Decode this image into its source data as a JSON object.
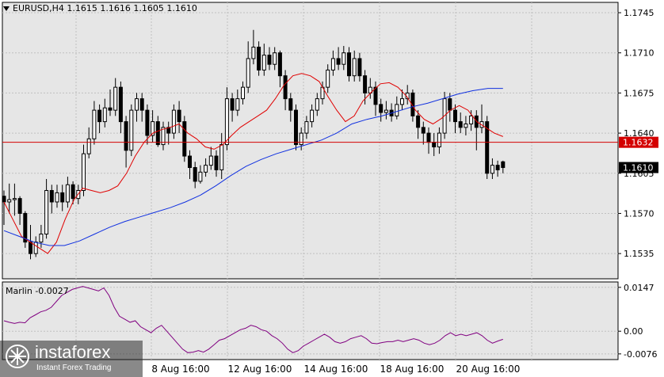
{
  "header": {
    "title": "EURUSD,H4  1.1615 1.1616 1.1605 1.1610"
  },
  "indicator": {
    "label": "Marlin -0.0027"
  },
  "logo": {
    "brand": "instaforex",
    "tagline": "Instant Forex Trading"
  },
  "colors": {
    "background": "#e6e6e6",
    "bull": "#ffffff",
    "bear": "#000000",
    "ma_fast": "#e00000",
    "ma_slow": "#1030e0",
    "level_line": "#d40000",
    "oscillator": "#800080"
  },
  "chart_data": [
    {
      "type": "candlestick",
      "symbol": "EURUSD",
      "timeframe": "H4",
      "ohlc_last": {
        "open": 1.1615,
        "high": 1.1616,
        "low": 1.1605,
        "close": 1.161
      },
      "y_ticks": [
        "1.1745",
        "1.1710",
        "1.1675",
        "1.1640",
        "1.1605",
        "1.1570",
        "1.1535"
      ],
      "ylim": [
        1.1513,
        1.1754
      ],
      "x_ticks": [
        "8 Aug 16:00",
        "12 Aug 16:00",
        "14 Aug 16:00",
        "18 Aug 16:00",
        "20 Aug 16:00"
      ],
      "price_label_level": "1.1632",
      "price_label_current": "1.1610",
      "grid": true,
      "candles": [
        [
          1.1585,
          1.158,
          1.159,
          1.156
        ],
        [
          1.158,
          1.1582,
          1.1596,
          1.157
        ],
        [
          1.1582,
          1.1583,
          1.1596,
          1.1568
        ],
        [
          1.1583,
          1.157,
          1.1585,
          1.156
        ],
        [
          1.157,
          1.1545,
          1.1572,
          1.154
        ],
        [
          1.1545,
          1.1535,
          1.156,
          1.153
        ],
        [
          1.1535,
          1.1545,
          1.155,
          1.1532
        ],
        [
          1.1545,
          1.1552,
          1.156,
          1.154
        ],
        [
          1.1552,
          1.159,
          1.16,
          1.1548
        ],
        [
          1.159,
          1.158,
          1.1595,
          1.157
        ],
        [
          1.158,
          1.1588,
          1.1595,
          1.1575
        ],
        [
          1.1588,
          1.158,
          1.1595,
          1.1572
        ],
        [
          1.158,
          1.1595,
          1.1602,
          1.1575
        ],
        [
          1.1595,
          1.1583,
          1.1598,
          1.1578
        ],
        [
          1.1583,
          1.159,
          1.1595,
          1.1578
        ],
        [
          1.159,
          1.1622,
          1.163,
          1.1585
        ],
        [
          1.1622,
          1.1635,
          1.1645,
          1.1618
        ],
        [
          1.1635,
          1.166,
          1.1668,
          1.163
        ],
        [
          1.166,
          1.165,
          1.1665,
          1.164
        ],
        [
          1.165,
          1.1662,
          1.167,
          1.1645
        ],
        [
          1.1662,
          1.166,
          1.1678,
          1.1655
        ],
        [
          1.166,
          1.168,
          1.1688,
          1.1655
        ],
        [
          1.168,
          1.165,
          1.1685,
          1.164
        ],
        [
          1.165,
          1.1625,
          1.1655,
          1.161
        ],
        [
          1.1625,
          1.166,
          1.1665,
          1.162
        ],
        [
          1.166,
          1.167,
          1.1675,
          1.165
        ],
        [
          1.167,
          1.166,
          1.1675,
          1.165
        ],
        [
          1.166,
          1.1638,
          1.1665,
          1.163
        ],
        [
          1.1638,
          1.165,
          1.166,
          1.1632
        ],
        [
          1.165,
          1.163,
          1.1655,
          1.1628
        ],
        [
          1.163,
          1.1645,
          1.165,
          1.1625
        ],
        [
          1.1645,
          1.164,
          1.165,
          1.163
        ],
        [
          1.164,
          1.166,
          1.1665,
          1.1635
        ],
        [
          1.166,
          1.165,
          1.1668,
          1.164
        ],
        [
          1.165,
          1.162,
          1.1655,
          1.1615
        ],
        [
          1.162,
          1.161,
          1.1625,
          1.16
        ],
        [
          1.161,
          1.1598,
          1.1615,
          1.1592
        ],
        [
          1.1598,
          1.1606,
          1.1612,
          1.1596
        ],
        [
          1.1606,
          1.1612,
          1.1618,
          1.1602
        ],
        [
          1.1612,
          1.162,
          1.1628,
          1.1608
        ],
        [
          1.162,
          1.1608,
          1.1625,
          1.1602
        ],
        [
          1.1608,
          1.163,
          1.164,
          1.16
        ],
        [
          1.163,
          1.167,
          1.168,
          1.1625
        ],
        [
          1.167,
          1.166,
          1.1675,
          1.165
        ],
        [
          1.166,
          1.167,
          1.1678,
          1.1655
        ],
        [
          1.167,
          1.168,
          1.1685,
          1.1665
        ],
        [
          1.168,
          1.1705,
          1.172,
          1.1675
        ],
        [
          1.1705,
          1.1715,
          1.173,
          1.17
        ],
        [
          1.1715,
          1.1695,
          1.172,
          1.169
        ],
        [
          1.1695,
          1.1708,
          1.1718,
          1.169
        ],
        [
          1.1708,
          1.17,
          1.1715,
          1.1695
        ],
        [
          1.17,
          1.171,
          1.1715,
          1.1695
        ],
        [
          1.171,
          1.169,
          1.1712,
          1.168
        ],
        [
          1.169,
          1.167,
          1.1695,
          1.166
        ],
        [
          1.167,
          1.166,
          1.1675,
          1.165
        ],
        [
          1.166,
          1.163,
          1.1665,
          1.1625
        ],
        [
          1.163,
          1.164,
          1.1645,
          1.1625
        ],
        [
          1.164,
          1.165,
          1.1655,
          1.1635
        ],
        [
          1.165,
          1.166,
          1.1665,
          1.1645
        ],
        [
          1.166,
          1.167,
          1.1675,
          1.1655
        ],
        [
          1.167,
          1.168,
          1.1685,
          1.1665
        ],
        [
          1.168,
          1.1695,
          1.17,
          1.1675
        ],
        [
          1.1695,
          1.1705,
          1.1712,
          1.169
        ],
        [
          1.1705,
          1.17,
          1.1715,
          1.1695
        ],
        [
          1.17,
          1.171,
          1.1716,
          1.1695
        ],
        [
          1.171,
          1.169,
          1.1715,
          1.1685
        ],
        [
          1.169,
          1.1705,
          1.1712,
          1.1685
        ],
        [
          1.1705,
          1.169,
          1.171,
          1.1685
        ],
        [
          1.169,
          1.1675,
          1.1695,
          1.1665
        ],
        [
          1.1675,
          1.168,
          1.1688,
          1.167
        ],
        [
          1.168,
          1.1665,
          1.1685,
          1.1655
        ],
        [
          1.1665,
          1.1658,
          1.167,
          1.165
        ],
        [
          1.1658,
          1.166,
          1.1668,
          1.1652
        ],
        [
          1.166,
          1.1655,
          1.1666,
          1.165
        ],
        [
          1.1655,
          1.1665,
          1.1672,
          1.1652
        ],
        [
          1.1665,
          1.167,
          1.1678,
          1.166
        ],
        [
          1.167,
          1.1675,
          1.1682,
          1.1665
        ],
        [
          1.1675,
          1.1655,
          1.1678,
          1.165
        ],
        [
          1.1655,
          1.1645,
          1.166,
          1.1635
        ],
        [
          1.1645,
          1.164,
          1.165,
          1.163
        ],
        [
          1.164,
          1.1632,
          1.1645,
          1.1622
        ],
        [
          1.1632,
          1.1628,
          1.164,
          1.162
        ],
        [
          1.1628,
          1.164,
          1.1645,
          1.1622
        ],
        [
          1.164,
          1.167,
          1.1676,
          1.1635
        ],
        [
          1.167,
          1.166,
          1.1675,
          1.165
        ],
        [
          1.166,
          1.165,
          1.1665,
          1.164
        ],
        [
          1.165,
          1.1645,
          1.1658,
          1.164
        ],
        [
          1.1645,
          1.1648,
          1.1655,
          1.1638
        ],
        [
          1.1648,
          1.1655,
          1.166,
          1.1642
        ],
        [
          1.1655,
          1.1645,
          1.166,
          1.1625
        ],
        [
          1.1645,
          1.165,
          1.1665,
          1.164
        ],
        [
          1.165,
          1.1605,
          1.1655,
          1.16
        ],
        [
          1.1605,
          1.1612,
          1.1618,
          1.16
        ],
        [
          1.1612,
          1.1608,
          1.1616,
          1.1602
        ],
        [
          1.1615,
          1.161,
          1.1616,
          1.1605
        ]
      ],
      "ma_fast": [
        1.158,
        1.1565,
        1.155,
        1.1545,
        1.154,
        1.1535,
        1.1545,
        1.1565,
        1.1582,
        1.1592,
        1.159,
        1.1588,
        1.159,
        1.1594,
        1.1605,
        1.162,
        1.1632,
        1.164,
        1.1643,
        1.1645,
        1.1648,
        1.164,
        1.1635,
        1.1628,
        1.1626,
        1.163,
        1.1638,
        1.1645,
        1.165,
        1.1655,
        1.166,
        1.167,
        1.1682,
        1.169,
        1.1692,
        1.169,
        1.1685,
        1.1672,
        1.166,
        1.165,
        1.1655,
        1.1668,
        1.1676,
        1.1683,
        1.1684,
        1.168,
        1.1672,
        1.166,
        1.1652,
        1.1648,
        1.1653,
        1.166,
        1.1664,
        1.166,
        1.165,
        1.1645,
        1.164,
        1.1637
      ],
      "ma_slow": [
        1.1555,
        1.155,
        1.1545,
        1.1542,
        1.1542,
        1.1546,
        1.1552,
        1.1558,
        1.1563,
        1.1567,
        1.1571,
        1.1575,
        1.158,
        1.1586,
        1.1594,
        1.1603,
        1.1611,
        1.1617,
        1.1622,
        1.1626,
        1.163,
        1.1634,
        1.164,
        1.1648,
        1.1652,
        1.1655,
        1.1659,
        1.1663,
        1.1666,
        1.167,
        1.1674,
        1.1677,
        1.1679,
        1.1679
      ],
      "marlin_ticks": [
        "0.0147",
        "0.00",
        "-0.0076"
      ],
      "marlin_ylim": [
        -0.0095,
        0.0165
      ],
      "marlin": [
        0.0035,
        0.003,
        0.0026,
        0.003,
        0.0028,
        0.0045,
        0.0055,
        0.0065,
        0.007,
        0.008,
        0.01,
        0.012,
        0.013,
        0.014,
        0.0145,
        0.015,
        0.0145,
        0.014,
        0.0135,
        0.0145,
        0.012,
        0.008,
        0.005,
        0.004,
        0.003,
        0.0035,
        0.0015,
        0.0005,
        -0.0005,
        0.001,
        0.002,
        0.0,
        -0.002,
        -0.004,
        -0.006,
        -0.0072,
        -0.007,
        -0.0065,
        -0.007,
        -0.006,
        -0.0045,
        -0.003,
        -0.0025,
        -0.0015,
        -0.0005,
        0.0005,
        0.001,
        0.002,
        0.0015,
        0.0005,
        0.0,
        -0.0015,
        -0.0025,
        -0.004,
        -0.006,
        -0.0072,
        -0.0065,
        -0.005,
        -0.004,
        -0.003,
        -0.002,
        -0.001,
        -0.002,
        -0.0035,
        -0.004,
        -0.0035,
        -0.0025,
        -0.002,
        -0.0015,
        -0.0025,
        -0.004,
        -0.0042,
        -0.0038,
        -0.0035,
        -0.0035,
        -0.003,
        -0.0035,
        -0.003,
        -0.0025,
        -0.003,
        -0.004,
        -0.0045,
        -0.004,
        -0.003,
        -0.0015,
        -0.0005,
        -0.0015,
        -0.001,
        -0.0015,
        -0.001,
        -0.0005,
        -0.0015,
        -0.003,
        -0.004,
        -0.0033,
        -0.0027
      ]
    }
  ]
}
